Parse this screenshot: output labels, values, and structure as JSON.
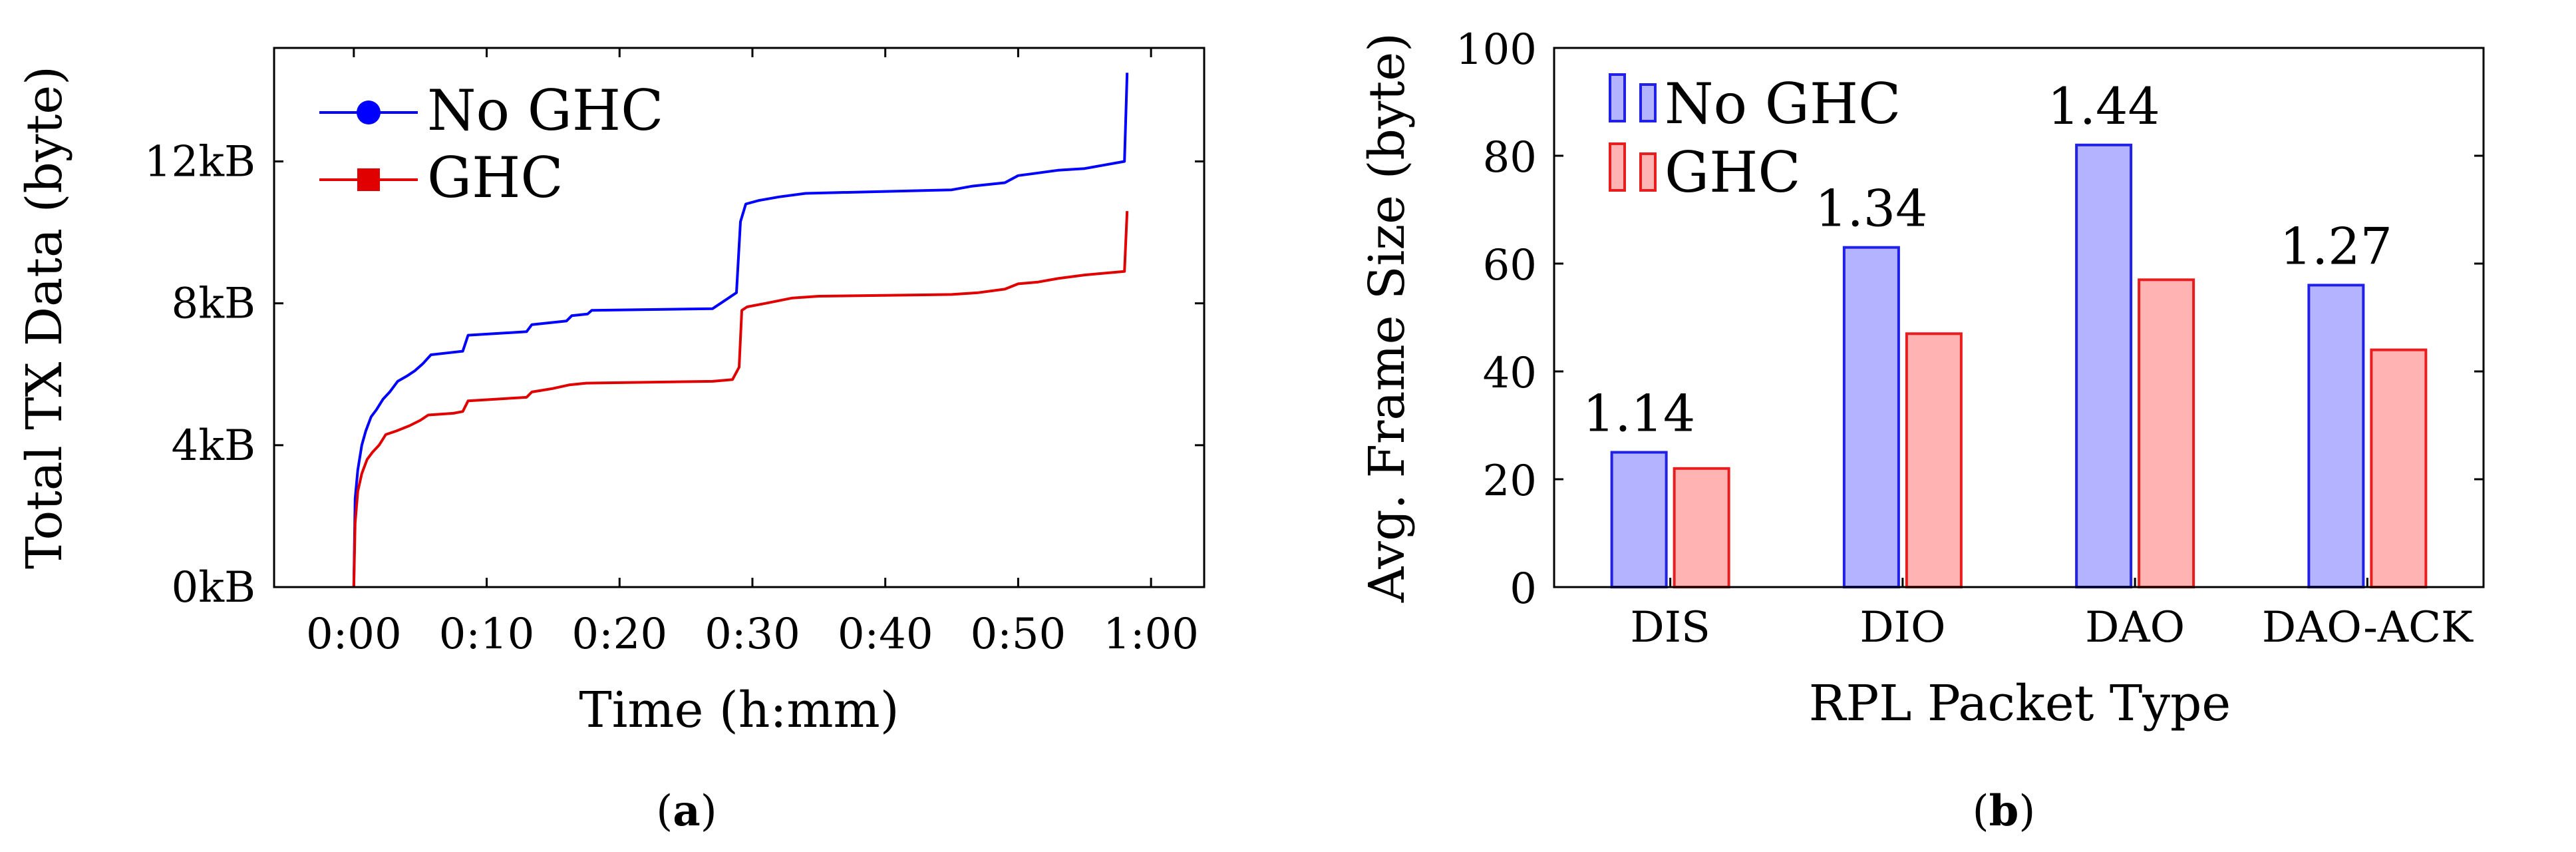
{
  "colors": {
    "no_ghc_line": "#0000ff",
    "ghc_line": "#e00000",
    "no_ghc_fill": "#b3b3ff",
    "no_ghc_stroke": "#2020e6",
    "ghc_fill": "#ffb3b3",
    "ghc_stroke": "#e81e1e"
  },
  "captions": {
    "a": {
      "open": "(",
      "letter": "a",
      "close": ")"
    },
    "b": {
      "open": "(",
      "letter": "b",
      "close": ")"
    }
  },
  "chart_data": [
    {
      "id": "a",
      "type": "line",
      "title": "",
      "xlabel": "Time (h:mm)",
      "ylabel": "Total TX Data (byte)",
      "x_unit": "minutes",
      "xlim": [
        -6,
        64
      ],
      "ylim": [
        0,
        15.2
      ],
      "x_ticks": [
        {
          "value": 0,
          "label": "0:00"
        },
        {
          "value": 10,
          "label": "0:10"
        },
        {
          "value": 20,
          "label": "0:20"
        },
        {
          "value": 30,
          "label": "0:30"
        },
        {
          "value": 40,
          "label": "0:40"
        },
        {
          "value": 50,
          "label": "0:50"
        },
        {
          "value": 60,
          "label": "1:00"
        }
      ],
      "y_ticks": [
        {
          "value": 0,
          "label": "0kB"
        },
        {
          "value": 4,
          "label": "4kB"
        },
        {
          "value": 8,
          "label": "8kB"
        },
        {
          "value": 12,
          "label": "12kB"
        }
      ],
      "legend_position": "top-left",
      "series": [
        {
          "name": "No GHC",
          "color": "#0000ff",
          "marker": "circle",
          "points": [
            [
              0,
              0
            ],
            [
              0.1,
              2.5
            ],
            [
              0.3,
              3.3
            ],
            [
              0.6,
              4.0
            ],
            [
              0.9,
              4.4
            ],
            [
              1.3,
              4.8
            ],
            [
              1.7,
              5.0
            ],
            [
              2.2,
              5.3
            ],
            [
              2.7,
              5.5
            ],
            [
              3.3,
              5.8
            ],
            [
              4.0,
              5.95
            ],
            [
              4.6,
              6.1
            ],
            [
              5.2,
              6.3
            ],
            [
              5.8,
              6.55
            ],
            [
              7.0,
              6.6
            ],
            [
              8.2,
              6.65
            ],
            [
              8.6,
              7.1
            ],
            [
              13.0,
              7.2
            ],
            [
              13.4,
              7.4
            ],
            [
              16.0,
              7.5
            ],
            [
              16.4,
              7.65
            ],
            [
              17.6,
              7.7
            ],
            [
              17.9,
              7.8
            ],
            [
              27.0,
              7.85
            ],
            [
              28.0,
              8.1
            ],
            [
              28.8,
              8.3
            ],
            [
              29.1,
              10.3
            ],
            [
              29.5,
              10.8
            ],
            [
              30.5,
              10.9
            ],
            [
              32.0,
              11.0
            ],
            [
              34.0,
              11.1
            ],
            [
              45.0,
              11.2
            ],
            [
              46.5,
              11.3
            ],
            [
              49.0,
              11.4
            ],
            [
              50.0,
              11.6
            ],
            [
              51.0,
              11.65
            ],
            [
              53.0,
              11.75
            ],
            [
              55.0,
              11.8
            ],
            [
              58.0,
              12.0
            ],
            [
              58.2,
              14.5
            ]
          ]
        },
        {
          "name": "GHC",
          "color": "#e00000",
          "marker": "square",
          "points": [
            [
              0,
              0
            ],
            [
              0.1,
              1.8
            ],
            [
              0.3,
              2.7
            ],
            [
              0.6,
              3.2
            ],
            [
              1.0,
              3.6
            ],
            [
              1.4,
              3.8
            ],
            [
              1.9,
              4.0
            ],
            [
              2.4,
              4.3
            ],
            [
              3.2,
              4.4
            ],
            [
              4.2,
              4.55
            ],
            [
              5.0,
              4.7
            ],
            [
              5.6,
              4.85
            ],
            [
              7.5,
              4.9
            ],
            [
              8.2,
              4.95
            ],
            [
              8.6,
              5.25
            ],
            [
              13.0,
              5.35
            ],
            [
              13.4,
              5.5
            ],
            [
              15.0,
              5.6
            ],
            [
              16.2,
              5.7
            ],
            [
              17.5,
              5.75
            ],
            [
              27.0,
              5.8
            ],
            [
              28.5,
              5.85
            ],
            [
              29.0,
              6.2
            ],
            [
              29.2,
              7.8
            ],
            [
              29.6,
              7.9
            ],
            [
              31.0,
              8.0
            ],
            [
              33.0,
              8.15
            ],
            [
              35.0,
              8.2
            ],
            [
              45.0,
              8.25
            ],
            [
              47.0,
              8.3
            ],
            [
              49.0,
              8.4
            ],
            [
              50.0,
              8.55
            ],
            [
              51.5,
              8.6
            ],
            [
              53.0,
              8.7
            ],
            [
              55.0,
              8.8
            ],
            [
              58.0,
              8.9
            ],
            [
              58.2,
              10.6
            ]
          ]
        }
      ]
    },
    {
      "id": "b",
      "type": "bar",
      "title": "",
      "xlabel": "RPL Packet Type",
      "ylabel": "Avg. Frame Size (byte)",
      "ylim": [
        0,
        100
      ],
      "y_ticks": [
        0,
        20,
        40,
        60,
        80,
        100
      ],
      "categories": [
        "DIS",
        "DIO",
        "DAO",
        "DAO-ACK"
      ],
      "legend_position": "top-left",
      "series": [
        {
          "name": "No GHC",
          "values": [
            25,
            63,
            82,
            56
          ]
        },
        {
          "name": "GHC",
          "values": [
            22,
            47,
            57,
            44
          ]
        }
      ],
      "ratio_labels": [
        "1.14",
        "1.34",
        "1.44",
        "1.27"
      ]
    }
  ]
}
